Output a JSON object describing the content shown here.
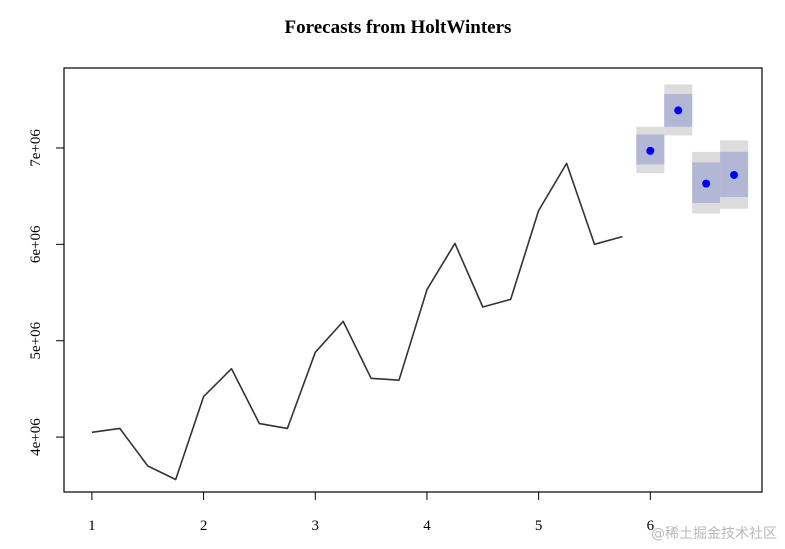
{
  "chart_data": {
    "type": "line",
    "title": "Forecasts from HoltWinters",
    "xlabel": "",
    "ylabel": "",
    "xlim": [
      0.75,
      7.0
    ],
    "ylim": [
      3430000,
      7830000
    ],
    "xticks": [
      1,
      2,
      3,
      4,
      5,
      6
    ],
    "yticks": [
      4000000,
      5000000,
      6000000,
      7000000
    ],
    "ytick_labels": [
      "4e+06",
      "5e+06",
      "6e+06",
      "7e+06"
    ],
    "grid": false,
    "legend": "none",
    "series": [
      {
        "kind": "observed",
        "color": "#333333",
        "x": [
          1.0,
          1.25,
          1.5,
          1.75,
          2.0,
          2.25,
          2.5,
          2.75,
          3.0,
          3.25,
          3.5,
          3.75,
          4.0,
          4.25,
          4.5,
          4.75,
          5.0,
          5.25,
          5.5,
          5.75
        ],
        "values": [
          4050000,
          4090000,
          3700000,
          3560000,
          4420000,
          4710000,
          4140000,
          4090000,
          4880000,
          5200000,
          4610000,
          4590000,
          5530000,
          6010000,
          5350000,
          5430000,
          6350000,
          6840000,
          6000000,
          6080000
        ]
      },
      {
        "kind": "forecast",
        "color": "#0000ff",
        "x": [
          6.0,
          6.25,
          6.5,
          6.75
        ],
        "values": [
          6970000,
          7390000,
          6630000,
          6720000
        ],
        "interval_80": [
          [
            6830000,
            7140000
          ],
          [
            7220000,
            7560000
          ],
          [
            6430000,
            6850000
          ],
          [
            6490000,
            6960000
          ]
        ],
        "interval_95": [
          [
            6740000,
            7220000
          ],
          [
            7130000,
            7660000
          ],
          [
            6320000,
            6960000
          ],
          [
            6370000,
            7080000
          ]
        ],
        "color_80": "#b3b7d6",
        "color_95": "#dcdcdc"
      }
    ]
  },
  "watermark": "@稀土掘金技术社区"
}
